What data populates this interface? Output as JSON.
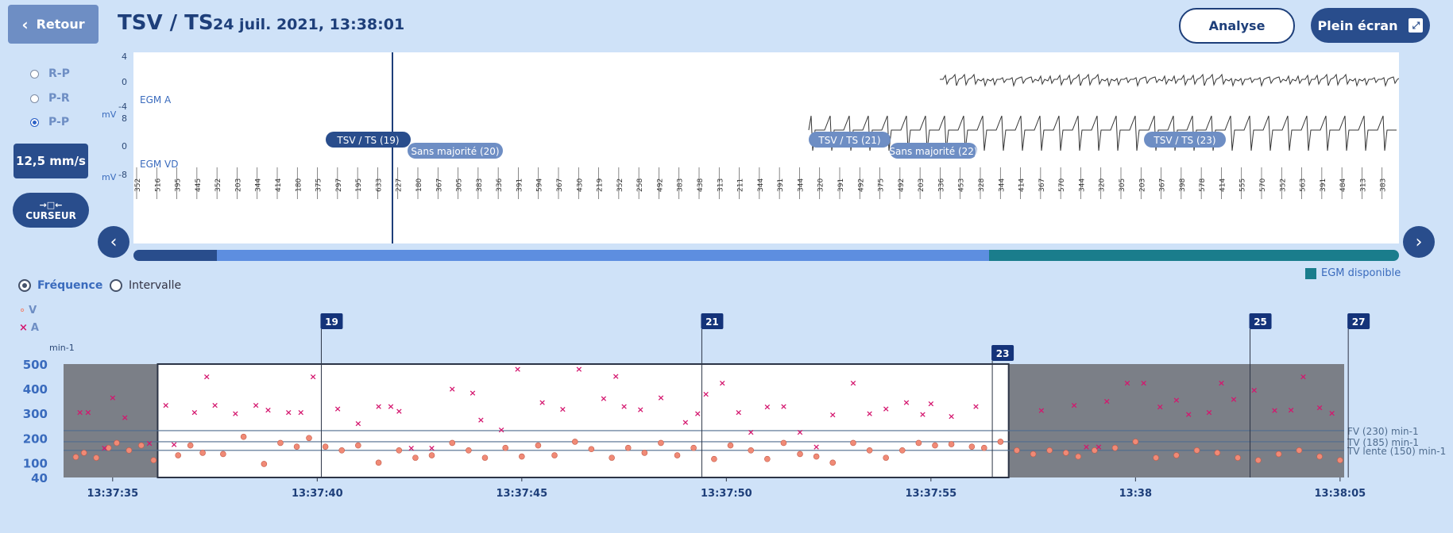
{
  "header": {
    "back_label": "Retour",
    "title": "TSV / TS",
    "datetime": "24 juil. 2021, 13:38:01",
    "analyse_label": "Analyse",
    "fullscreen_label": "Plein écran"
  },
  "sidebar": {
    "radios": [
      {
        "label": "R-P",
        "selected": false
      },
      {
        "label": "P-R",
        "selected": false
      },
      {
        "label": "P-P",
        "selected": true
      }
    ],
    "speed_label": "12,5 mm/s",
    "cursor_label": "CURSEUR"
  },
  "egm": {
    "unit": "mV",
    "channel_a": {
      "name": "EGM A",
      "ticks": [
        "4",
        "0",
        "-4"
      ]
    },
    "channel_vd": {
      "name": "EGM VD",
      "ticks": [
        "8",
        "0",
        "-8"
      ]
    },
    "episode_tags": [
      {
        "label": "TSV / TS (19)",
        "style": "dark"
      },
      {
        "label": "Sans majorité (20)",
        "style": "light"
      },
      {
        "label": "TSV / TS (21)",
        "style": "light"
      },
      {
        "label": "Sans majorité (22)",
        "style": "light"
      },
      {
        "label": "TSV / TS (23)",
        "style": "light"
      }
    ],
    "interval_values": [
      "352",
      "516",
      "395",
      "445",
      "352",
      "203",
      "344",
      "414",
      "180",
      "375",
      "297",
      "195",
      "633",
      "227",
      "180",
      "367",
      "305",
      "383",
      "336",
      "391",
      "594",
      "367",
      "430",
      "219",
      "352",
      "258",
      "492",
      "383",
      "438",
      "313",
      "211",
      "344",
      "391",
      "344",
      "320",
      "391",
      "492",
      "375",
      "492",
      "203",
      "336",
      "453",
      "328",
      "344",
      "414",
      "367",
      "570",
      "344",
      "320",
      "305",
      "203",
      "367",
      "398",
      "578",
      "414",
      "555",
      "570",
      "352",
      "563",
      "391",
      "484",
      "313",
      "383"
    ],
    "legend_label": "EGM disponible",
    "progress": {
      "segments": [
        0.066,
        0.61,
        0.324
      ]
    }
  },
  "trend": {
    "mode_options": [
      {
        "label": "Fréquence",
        "selected": true
      },
      {
        "label": "Intervalle",
        "selected": false
      }
    ],
    "legend": [
      {
        "marker": "o",
        "label": "V",
        "color": "#f08a76"
      },
      {
        "marker": "×",
        "label": "A",
        "color": "#d4166e"
      }
    ],
    "threshold_lines": [
      {
        "label": "FV (230) min-1",
        "value": 230
      },
      {
        "label": "TV (185) min-1",
        "value": 185
      },
      {
        "label": "TV lente (150) min-1",
        "value": 150
      }
    ],
    "episode_markers": [
      "19",
      "21",
      "23",
      "25",
      "27"
    ],
    "colors": {
      "accent": "#294d8c",
      "v": "#f08a76",
      "a": "#d4166e",
      "shade": "#7b7f87",
      "threshold": "#4f6c8e"
    }
  },
  "chart_data": {
    "type": "scatter",
    "ylabel": "min-1",
    "ylim": [
      40,
      500
    ],
    "y_ticks": [
      "500",
      "400",
      "300",
      "200",
      "100",
      "40"
    ],
    "x_ticks": [
      "13:37:35",
      "13:37:40",
      "13:37:45",
      "13:37:50",
      "13:37:55",
      "13:38",
      "13:38:05"
    ],
    "x_tick_seconds": [
      0,
      5,
      10,
      15,
      20,
      25,
      30
    ],
    "x_range_seconds": [
      -1.2,
      30.1
    ],
    "highlighted_range_seconds": [
      1.1,
      21.9
    ],
    "episode_marker_seconds": [
      5.1,
      14.4,
      21.5,
      27.8,
      30.2
    ],
    "series": [
      {
        "name": "A",
        "x": [
          -0.8,
          -0.6,
          -0.2,
          0,
          0.3,
          0.9,
          1.3,
          1.5,
          2.0,
          2.3,
          2.5,
          3.0,
          3.5,
          3.8,
          4.3,
          4.6,
          4.9,
          5.5,
          6.0,
          6.5,
          6.8,
          7.0,
          7.3,
          7.8,
          8.3,
          8.8,
          9.0,
          9.5,
          9.9,
          10.5,
          11.0,
          11.4,
          12.0,
          12.3,
          12.5,
          12.9,
          13.4,
          14.0,
          14.3,
          14.5,
          14.9,
          15.3,
          15.6,
          16.0,
          16.4,
          16.8,
          17.2,
          17.6,
          18.1,
          18.5,
          18.9,
          19.4,
          19.8,
          20.0,
          20.5,
          21.1,
          22.7,
          23.5,
          23.8,
          24.1,
          24.3,
          24.8,
          25.2,
          25.6,
          26.0,
          26.3,
          26.8,
          27.1,
          27.4,
          27.9,
          28.4,
          28.8,
          29.1,
          29.5,
          29.8
        ],
        "y": [
          305,
          305,
          160,
          365,
          285,
          180,
          335,
          175,
          305,
          450,
          335,
          300,
          335,
          315,
          305,
          305,
          450,
          320,
          260,
          330,
          330,
          310,
          160,
          160,
          400,
          385,
          275,
          235,
          480,
          345,
          318,
          480,
          362,
          452,
          330,
          316,
          365,
          265,
          300,
          380,
          424,
          305,
          225,
          328,
          330,
          225,
          165,
          295,
          425,
          300,
          320,
          345,
          298,
          340,
          290,
          330,
          314,
          334,
          166,
          165,
          350,
          424,
          424,
          328,
          355,
          298,
          305,
          425,
          358,
          396,
          314,
          315,
          450,
          324,
          302
        ]
      },
      {
        "name": "V",
        "x": [
          -0.9,
          -0.7,
          -0.4,
          -0.1,
          0.1,
          0.4,
          0.7,
          1.0,
          1.6,
          1.9,
          2.2,
          2.7,
          3.2,
          3.7,
          4.1,
          4.5,
          4.8,
          5.2,
          5.6,
          6.0,
          6.5,
          7.0,
          7.4,
          7.8,
          8.3,
          8.7,
          9.1,
          9.6,
          10.0,
          10.4,
          10.8,
          11.3,
          11.7,
          12.2,
          12.6,
          13.0,
          13.4,
          13.8,
          14.2,
          14.7,
          15.1,
          15.6,
          16.0,
          16.4,
          16.8,
          17.2,
          17.6,
          18.1,
          18.5,
          18.9,
          19.3,
          19.7,
          20.1,
          20.5,
          21.0,
          21.3,
          21.7,
          22.1,
          22.5,
          22.9,
          23.3,
          23.6,
          24.0,
          24.5,
          25.0,
          25.5,
          26.0,
          26.5,
          27.0,
          27.5,
          28.0,
          28.5,
          29.0,
          29.5,
          30.0
        ],
        "y": [
          123,
          140,
          120,
          160,
          180,
          150,
          170,
          110,
          130,
          170,
          140,
          135,
          205,
          95,
          180,
          165,
          200,
          165,
          150,
          170,
          100,
          150,
          120,
          130,
          180,
          150,
          120,
          160,
          125,
          170,
          130,
          185,
          155,
          120,
          160,
          140,
          180,
          130,
          160,
          115,
          170,
          150,
          115,
          180,
          135,
          125,
          100,
          180,
          150,
          120,
          150,
          180,
          170,
          175,
          165,
          160,
          185,
          150,
          135,
          150,
          140,
          125,
          150,
          160,
          185,
          120,
          130,
          150,
          140,
          120,
          110,
          135,
          150,
          125,
          110
        ]
      }
    ]
  }
}
